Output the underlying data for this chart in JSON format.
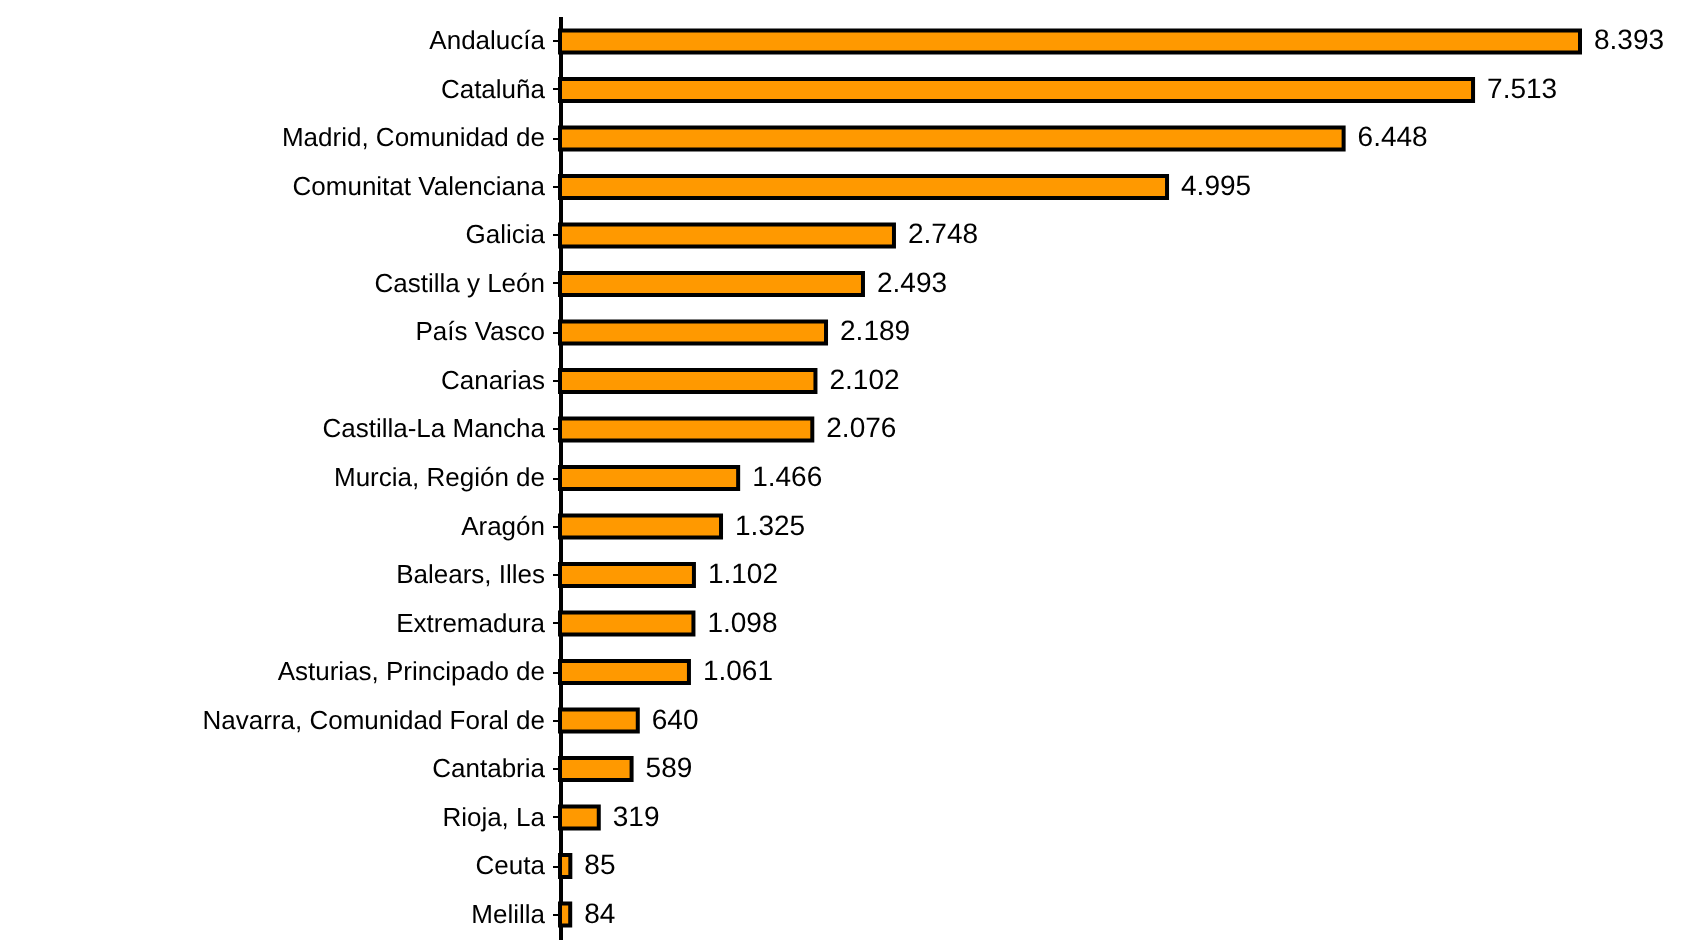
{
  "chart_data": {
    "type": "bar",
    "orientation": "horizontal",
    "categories": [
      "Andalucía",
      "Cataluña",
      "Madrid, Comunidad de",
      "Comunitat Valenciana",
      "Galicia",
      "Castilla y León",
      "País Vasco",
      "Canarias",
      "Castilla-La Mancha",
      "Murcia, Región de",
      "Aragón",
      "Balears, Illes",
      "Extremadura",
      "Asturias, Principado de",
      "Navarra, Comunidad Foral de",
      "Cantabria",
      "Rioja, La",
      "Ceuta",
      "Melilla"
    ],
    "values": [
      8393,
      7513,
      6448,
      4995,
      2748,
      2493,
      2189,
      2102,
      2076,
      1466,
      1325,
      1102,
      1098,
      1061,
      640,
      589,
      319,
      85,
      84
    ],
    "value_labels": [
      "8.393",
      "7.513",
      "6.448",
      "4.995",
      "2.748",
      "2.493",
      "2.189",
      "2.102",
      "2.076",
      "1.466",
      "1.325",
      "1.102",
      "1.098",
      "1.061",
      "640",
      "589",
      "319",
      "85",
      "84"
    ],
    "color": "#ff9900",
    "grid": false
  }
}
